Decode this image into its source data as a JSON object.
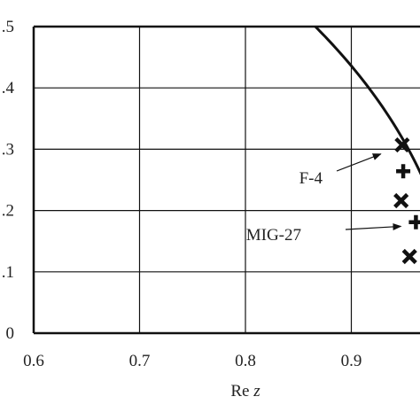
{
  "chart_data": {
    "type": "scatter",
    "title": "",
    "xlabel": "Re z",
    "ylabel": "",
    "xlim": [
      0.6,
      1.0
    ],
    "ylim": [
      0,
      0.5
    ],
    "x_ticks": [
      0.6,
      0.7,
      0.8,
      0.9
    ],
    "y_ticks": [
      0,
      0.1,
      0.2,
      0.3,
      0.4,
      0.5
    ],
    "x_tick_labels": [
      "0.6",
      "0.7",
      "0.8",
      "0.9"
    ],
    "y_tick_labels": [
      "0",
      ".1",
      ".2",
      ".3",
      ".4",
      ".5"
    ],
    "grid": true,
    "curve": {
      "kind": "unit-circle arc |z| = 1",
      "radius": 1.0,
      "color": "#111111"
    },
    "points": [
      {
        "x": 0.948,
        "y": 0.307,
        "marker": "x"
      },
      {
        "x": 0.947,
        "y": 0.216,
        "marker": "x"
      },
      {
        "x": 0.955,
        "y": 0.125,
        "marker": "x"
      },
      {
        "x": 0.949,
        "y": 0.264,
        "marker": "+"
      },
      {
        "x": 0.961,
        "y": 0.181,
        "marker": "+"
      }
    ],
    "annotations": [
      {
        "label": "F-4",
        "target_x": 0.932,
        "target_y": 0.298
      },
      {
        "label": "MIG-27",
        "target_x": 0.951,
        "target_y": 0.18
      }
    ],
    "colors": {
      "ink": "#111111",
      "grid": "#111111",
      "background": "#ffffff"
    }
  }
}
